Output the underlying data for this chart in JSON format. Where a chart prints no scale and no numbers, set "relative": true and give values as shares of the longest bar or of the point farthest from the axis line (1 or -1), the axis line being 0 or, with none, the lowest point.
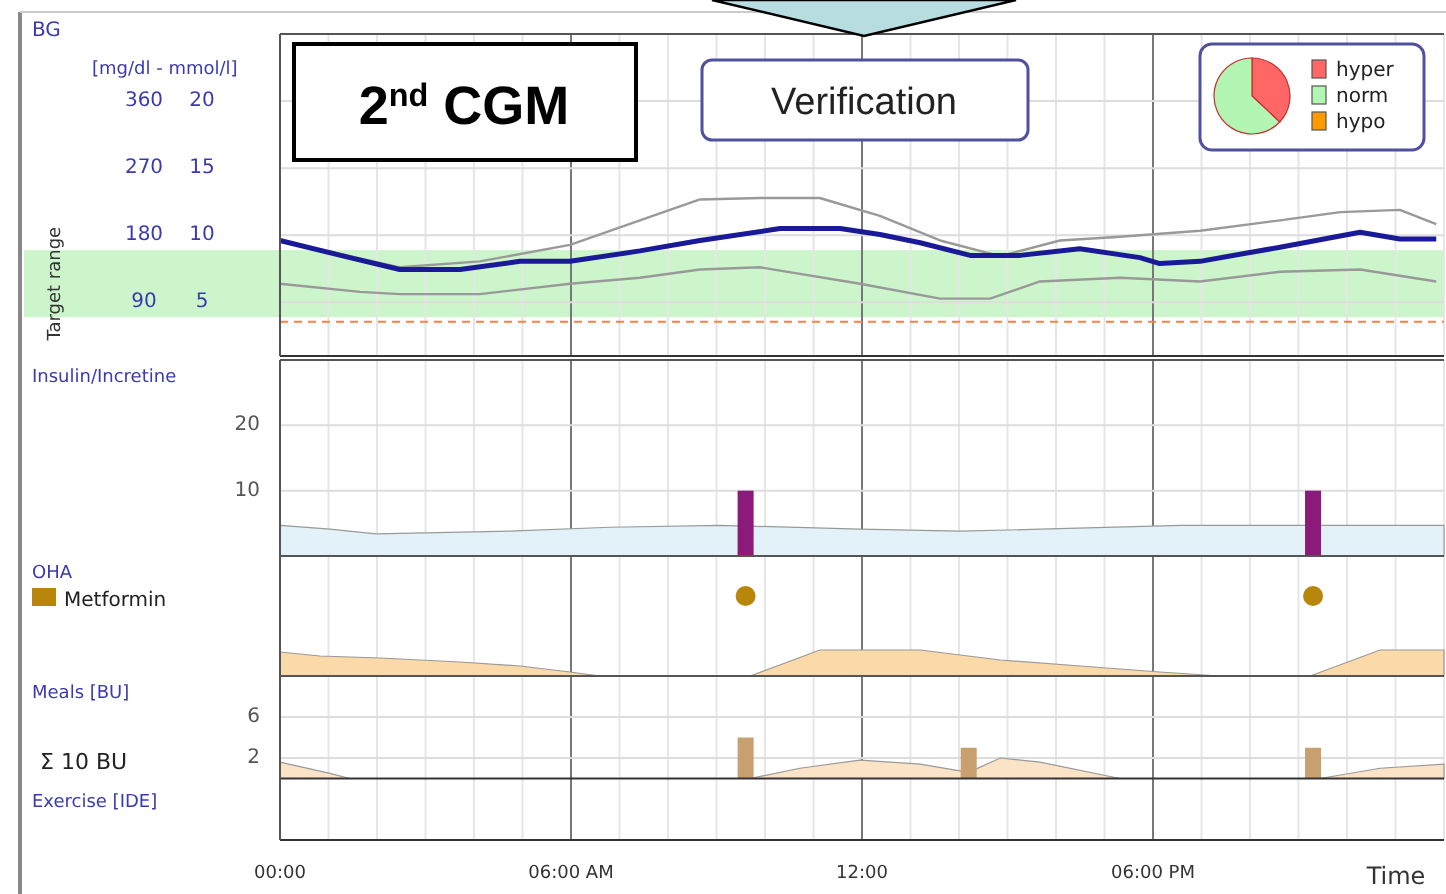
{
  "chart_data": [
    {
      "type": "line",
      "title": "BG",
      "ylabel": "[mg/dl - mmol/l]",
      "xlim": [
        0,
        24
      ],
      "xticks": [
        0,
        6,
        12,
        18
      ],
      "ylim": [
        18,
        450
      ],
      "yticks": [
        90,
        180,
        270,
        360
      ],
      "y2lim": [
        1,
        25
      ],
      "y2ticks": [
        5,
        10,
        15,
        20
      ],
      "tick_labels": "y",
      "grid": true,
      "bands": [
        {
          "axis": "y",
          "from": 70,
          "to": 160,
          "label": "Target range",
          "color": "#ccf5cc"
        }
      ],
      "ref_lines": [
        {
          "axis": "y",
          "value": 64,
          "color": "#ff8040",
          "line_style": "dashed"
        }
      ],
      "annotations": [
        "2$^{nd}$ CGM",
        "Verification"
      ],
      "series": [
        {
          "color": "#999999",
          "x": [
            0,
            2.47,
            4.12,
            5.98,
            7.42,
            8.66,
            9.9,
            11.13,
            12.37,
            13.61,
            14.85,
            16.08,
            17.32,
            18.97,
            20.62,
            21.86,
            23.09,
            23.84
          ],
          "values": [
            173,
            137,
            145,
            167,
            200,
            228,
            230,
            230,
            206,
            173,
            152,
            173,
            178,
            186,
            200,
            211,
            214,
            195
          ]
        },
        {
          "color": "#999999",
          "x": [
            0,
            1.65,
            2.47,
            4.12,
            5.98,
            7.42,
            8.66,
            9.9,
            11.96,
            13.61,
            14.64,
            15.67,
            17.32,
            18.97,
            20.62,
            22.27,
            23.84
          ],
          "values": [
            115,
            104,
            101,
            101,
            115,
            123,
            134,
            137,
            115,
            95,
            95,
            118,
            123,
            118,
            131,
            134,
            118
          ]
        },
        {
          "color": "#1a1a99",
          "x": [
            0,
            1.44,
            2.47,
            3.71,
            4.95,
            5.98,
            7.42,
            8.66,
            10.31,
            11.55,
            12.37,
            13.2,
            14.23,
            15.26,
            16.49,
            17.73,
            18.14,
            18.97,
            20.62,
            22.27,
            23.09,
            23.84
          ],
          "values": [
            173,
            150,
            134,
            134,
            145,
            145,
            159,
            173,
            189,
            189,
            181,
            170,
            153,
            153,
            162,
            150,
            142,
            145,
            164,
            184,
            175,
            175
          ]
        }
      ]
    },
    {
      "type": "pie",
      "categories": [
        "hyper",
        "norm",
        "hypo"
      ],
      "values": [
        37,
        63,
        0
      ],
      "colors": [
        "#ff6666",
        "#b3f5b3",
        "#ff9900"
      ],
      "legend": "right"
    },
    {
      "type": "bar",
      "ylabel": "Insulin/Incretine",
      "xlim": [
        0,
        24
      ],
      "xticks": [
        0,
        6,
        12,
        18
      ],
      "ylim": [
        0,
        30
      ],
      "yticks": [
        10,
        20
      ],
      "tick_labels": "y",
      "grid": true,
      "series": [
        {
          "type": "area",
          "color": "#e3f1f8",
          "x": [
            0,
            1.03,
            1.98,
            4.74,
            6.8,
            9.07,
            11.96,
            14.02,
            15.67,
            18.56,
            24
          ],
          "values": [
            4.7,
            4.1,
            3.4,
            3.8,
            4.4,
            4.7,
            4.1,
            3.8,
            4.1,
            4.7,
            4.7
          ]
        },
        {
          "type": "bar",
          "color": "#8b1a7a",
          "x": [
            9.6,
            21.3
          ],
          "values": [
            10,
            10
          ]
        }
      ]
    },
    {
      "type": "scatter",
      "ylabel": "OHA",
      "relative": true,
      "xlim": [
        0,
        24
      ],
      "xticks": [
        0,
        6,
        12,
        18
      ],
      "tick_labels": false,
      "grid": "x",
      "legend": "left",
      "series": [
        {
          "type": "area",
          "color": "#fbd9a8",
          "x": [
            0,
            0.82,
            2.06,
            3.71,
            4.95,
            5.98,
            6.6,
            9.69,
            11.13,
            13.2,
            14.85,
            16.5,
            18.14,
            19.38,
            21.24,
            22.68,
            24
          ],
          "values": [
            0.3,
            0.25,
            0.225,
            0.175,
            0.125,
            0.05,
            0,
            0,
            0.325,
            0.325,
            0.2,
            0.125,
            0.05,
            0,
            0,
            0.325,
            0.325
          ]
        },
        {
          "type": "scatter",
          "name": "Metformin",
          "color": "#b8860b",
          "x": [
            9.6,
            21.3
          ],
          "values": [
            1,
            1
          ]
        }
      ]
    },
    {
      "type": "bar",
      "ylabel": "Meals [BU]",
      "xlabel": "Time",
      "xlim": [
        0,
        24
      ],
      "xticks": [
        {
          "value": 0,
          "label": "00:00"
        },
        {
          "value": 6,
          "label": "06:00 AM"
        },
        {
          "value": 12,
          "label": "12:00"
        },
        {
          "value": 18,
          "label": "06:00 PM"
        }
      ],
      "ylim": [
        -6,
        10
      ],
      "yticks": [
        2,
        6
      ],
      "grid": true,
      "annotations": [
        "Σ  10 BU",
        "Exercise [IDE]"
      ],
      "series": [
        {
          "type": "area",
          "color": "#fbe3c8",
          "x": [
            0,
            1.03,
            1.44,
            9.69,
            10.72,
            11.96,
            13.2,
            14.2,
            14.85,
            15.67,
            17.32,
            21.44,
            22.68,
            24
          ],
          "values": [
            1.6,
            0.5,
            0,
            0,
            1,
            1.8,
            1.4,
            0.6,
            2,
            1.6,
            0,
            0,
            1,
            1.4
          ]
        },
        {
          "type": "bar",
          "color": "#c8a070",
          "x": [
            9.6,
            14.2,
            21.3
          ],
          "values": [
            4,
            3,
            3
          ]
        }
      ]
    }
  ]
}
